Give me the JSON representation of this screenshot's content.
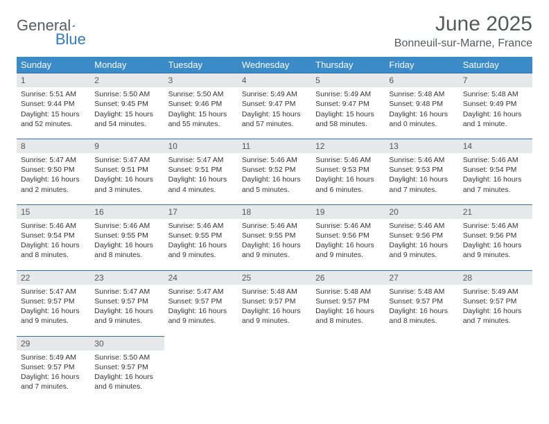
{
  "logo": {
    "text1": "General",
    "text2": "Blue"
  },
  "title": "June 2025",
  "location": "Bonneuil-sur-Marne, France",
  "colors": {
    "header_bg": "#3b8bc9",
    "header_text": "#ffffff",
    "daynum_bg": "#e7e8e9",
    "daynum_border": "#2f6fa5",
    "body_text": "#333333",
    "title_color": "#54595d",
    "logo_gray": "#555b60",
    "logo_blue": "#2f7bbf"
  },
  "weekdays": [
    "Sunday",
    "Monday",
    "Tuesday",
    "Wednesday",
    "Thursday",
    "Friday",
    "Saturday"
  ],
  "weeks": [
    [
      {
        "n": "1",
        "sr": "Sunrise: 5:51 AM",
        "ss": "Sunset: 9:44 PM",
        "dl": "Daylight: 15 hours and 52 minutes."
      },
      {
        "n": "2",
        "sr": "Sunrise: 5:50 AM",
        "ss": "Sunset: 9:45 PM",
        "dl": "Daylight: 15 hours and 54 minutes."
      },
      {
        "n": "3",
        "sr": "Sunrise: 5:50 AM",
        "ss": "Sunset: 9:46 PM",
        "dl": "Daylight: 15 hours and 55 minutes."
      },
      {
        "n": "4",
        "sr": "Sunrise: 5:49 AM",
        "ss": "Sunset: 9:47 PM",
        "dl": "Daylight: 15 hours and 57 minutes."
      },
      {
        "n": "5",
        "sr": "Sunrise: 5:49 AM",
        "ss": "Sunset: 9:47 PM",
        "dl": "Daylight: 15 hours and 58 minutes."
      },
      {
        "n": "6",
        "sr": "Sunrise: 5:48 AM",
        "ss": "Sunset: 9:48 PM",
        "dl": "Daylight: 16 hours and 0 minutes."
      },
      {
        "n": "7",
        "sr": "Sunrise: 5:48 AM",
        "ss": "Sunset: 9:49 PM",
        "dl": "Daylight: 16 hours and 1 minute."
      }
    ],
    [
      {
        "n": "8",
        "sr": "Sunrise: 5:47 AM",
        "ss": "Sunset: 9:50 PM",
        "dl": "Daylight: 16 hours and 2 minutes."
      },
      {
        "n": "9",
        "sr": "Sunrise: 5:47 AM",
        "ss": "Sunset: 9:51 PM",
        "dl": "Daylight: 16 hours and 3 minutes."
      },
      {
        "n": "10",
        "sr": "Sunrise: 5:47 AM",
        "ss": "Sunset: 9:51 PM",
        "dl": "Daylight: 16 hours and 4 minutes."
      },
      {
        "n": "11",
        "sr": "Sunrise: 5:46 AM",
        "ss": "Sunset: 9:52 PM",
        "dl": "Daylight: 16 hours and 5 minutes."
      },
      {
        "n": "12",
        "sr": "Sunrise: 5:46 AM",
        "ss": "Sunset: 9:53 PM",
        "dl": "Daylight: 16 hours and 6 minutes."
      },
      {
        "n": "13",
        "sr": "Sunrise: 5:46 AM",
        "ss": "Sunset: 9:53 PM",
        "dl": "Daylight: 16 hours and 7 minutes."
      },
      {
        "n": "14",
        "sr": "Sunrise: 5:46 AM",
        "ss": "Sunset: 9:54 PM",
        "dl": "Daylight: 16 hours and 7 minutes."
      }
    ],
    [
      {
        "n": "15",
        "sr": "Sunrise: 5:46 AM",
        "ss": "Sunset: 9:54 PM",
        "dl": "Daylight: 16 hours and 8 minutes."
      },
      {
        "n": "16",
        "sr": "Sunrise: 5:46 AM",
        "ss": "Sunset: 9:55 PM",
        "dl": "Daylight: 16 hours and 8 minutes."
      },
      {
        "n": "17",
        "sr": "Sunrise: 5:46 AM",
        "ss": "Sunset: 9:55 PM",
        "dl": "Daylight: 16 hours and 9 minutes."
      },
      {
        "n": "18",
        "sr": "Sunrise: 5:46 AM",
        "ss": "Sunset: 9:55 PM",
        "dl": "Daylight: 16 hours and 9 minutes."
      },
      {
        "n": "19",
        "sr": "Sunrise: 5:46 AM",
        "ss": "Sunset: 9:56 PM",
        "dl": "Daylight: 16 hours and 9 minutes."
      },
      {
        "n": "20",
        "sr": "Sunrise: 5:46 AM",
        "ss": "Sunset: 9:56 PM",
        "dl": "Daylight: 16 hours and 9 minutes."
      },
      {
        "n": "21",
        "sr": "Sunrise: 5:46 AM",
        "ss": "Sunset: 9:56 PM",
        "dl": "Daylight: 16 hours and 9 minutes."
      }
    ],
    [
      {
        "n": "22",
        "sr": "Sunrise: 5:47 AM",
        "ss": "Sunset: 9:57 PM",
        "dl": "Daylight: 16 hours and 9 minutes."
      },
      {
        "n": "23",
        "sr": "Sunrise: 5:47 AM",
        "ss": "Sunset: 9:57 PM",
        "dl": "Daylight: 16 hours and 9 minutes."
      },
      {
        "n": "24",
        "sr": "Sunrise: 5:47 AM",
        "ss": "Sunset: 9:57 PM",
        "dl": "Daylight: 16 hours and 9 minutes."
      },
      {
        "n": "25",
        "sr": "Sunrise: 5:48 AM",
        "ss": "Sunset: 9:57 PM",
        "dl": "Daylight: 16 hours and 9 minutes."
      },
      {
        "n": "26",
        "sr": "Sunrise: 5:48 AM",
        "ss": "Sunset: 9:57 PM",
        "dl": "Daylight: 16 hours and 8 minutes."
      },
      {
        "n": "27",
        "sr": "Sunrise: 5:48 AM",
        "ss": "Sunset: 9:57 PM",
        "dl": "Daylight: 16 hours and 8 minutes."
      },
      {
        "n": "28",
        "sr": "Sunrise: 5:49 AM",
        "ss": "Sunset: 9:57 PM",
        "dl": "Daylight: 16 hours and 7 minutes."
      }
    ],
    [
      {
        "n": "29",
        "sr": "Sunrise: 5:49 AM",
        "ss": "Sunset: 9:57 PM",
        "dl": "Daylight: 16 hours and 7 minutes."
      },
      {
        "n": "30",
        "sr": "Sunrise: 5:50 AM",
        "ss": "Sunset: 9:57 PM",
        "dl": "Daylight: 16 hours and 6 minutes."
      },
      {
        "empty": true
      },
      {
        "empty": true
      },
      {
        "empty": true
      },
      {
        "empty": true
      },
      {
        "empty": true
      }
    ]
  ]
}
